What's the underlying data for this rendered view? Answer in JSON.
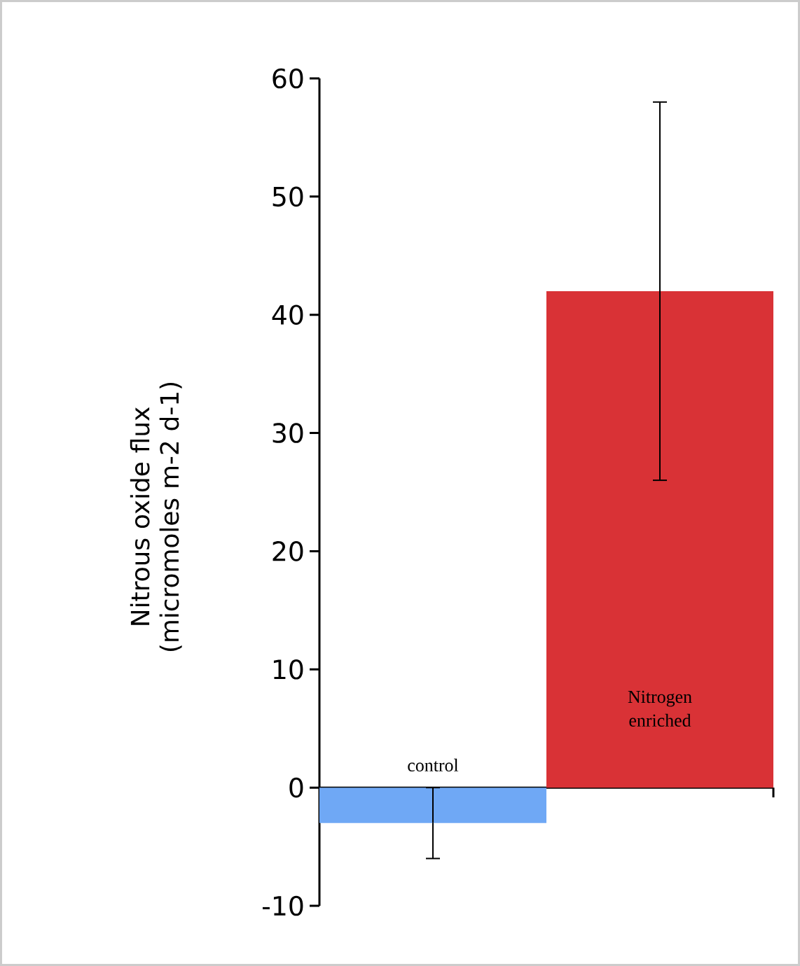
{
  "chart_data": {
    "type": "bar",
    "ylabel": "Nitrous oxide flux (micromoles m-2 d-1)",
    "categories": [
      "control",
      "Nitrogen enriched"
    ],
    "values": [
      -3,
      42
    ],
    "errors": [
      3,
      16
    ],
    "colors": [
      "#6fa8f5",
      "#d93236"
    ],
    "ylim": [
      -10,
      60
    ],
    "yticks": [
      -10,
      0,
      10,
      20,
      30,
      40,
      50,
      60
    ]
  }
}
